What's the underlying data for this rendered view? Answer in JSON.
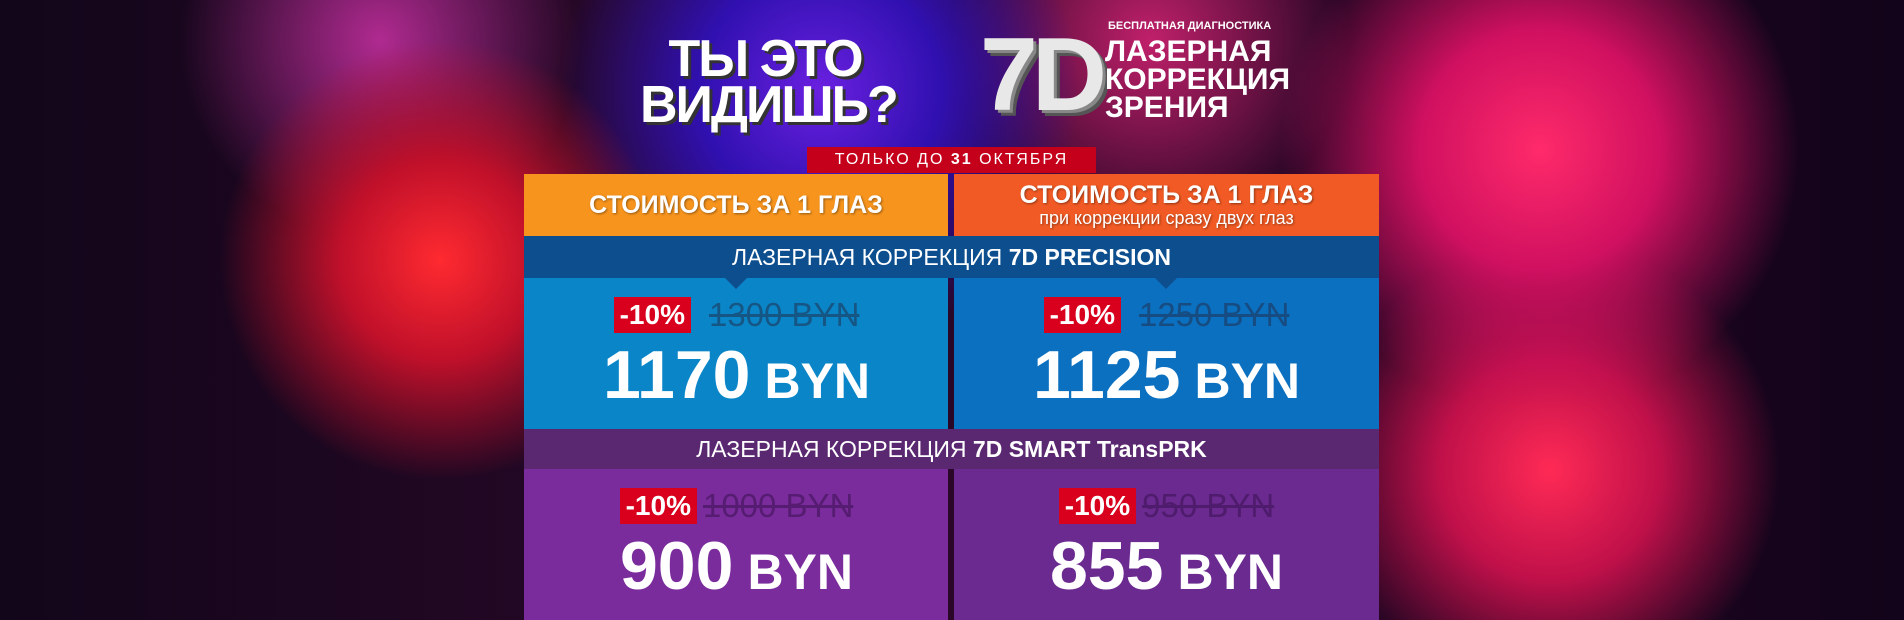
{
  "header": {
    "slogan_line1": "ТЫ ЭТО",
    "slogan_line2": "ВИДИШЬ?",
    "logo": "7D",
    "subtitle": "БЕСПЛАТНАЯ ДИАГНОСТИКА",
    "title_lines": [
      "ЛАЗЕРНАЯ",
      "КОРРЕКЦИЯ",
      "ЗРЕНИЯ"
    ]
  },
  "badge": {
    "prefix": "ТОЛЬКО ДО ",
    "date": "31",
    "suffix": " ОКТЯБРЯ"
  },
  "columns": [
    {
      "title": "СТОИМОСТЬ ЗА 1 ГЛАЗ"
    },
    {
      "title": "СТОИМОСТЬ ЗА 1 ГЛАЗ",
      "note": "при коррекции сразу двух глаз"
    }
  ],
  "sections": [
    {
      "prefix": "ЛАЗЕРНАЯ КОРРЕКЦИЯ ",
      "name": "7D PRECISION",
      "cells": [
        {
          "discount": "-10%",
          "old_price": "1300 BYN",
          "amount": "1170",
          "currency": "BYN"
        },
        {
          "discount": "-10%",
          "old_price": "1250 BYN",
          "amount": "1125",
          "currency": "BYN"
        }
      ]
    },
    {
      "prefix": "ЛАЗЕРНАЯ КОРРЕКЦИЯ ",
      "name": "7D SMART TransPRK",
      "cells": [
        {
          "discount": "-10%",
          "old_price": "1000 BYN",
          "amount": "900",
          "currency": "BYN"
        },
        {
          "discount": "-10%",
          "old_price": "950 BYN",
          "amount": "855",
          "currency": "BYN"
        }
      ]
    }
  ]
}
